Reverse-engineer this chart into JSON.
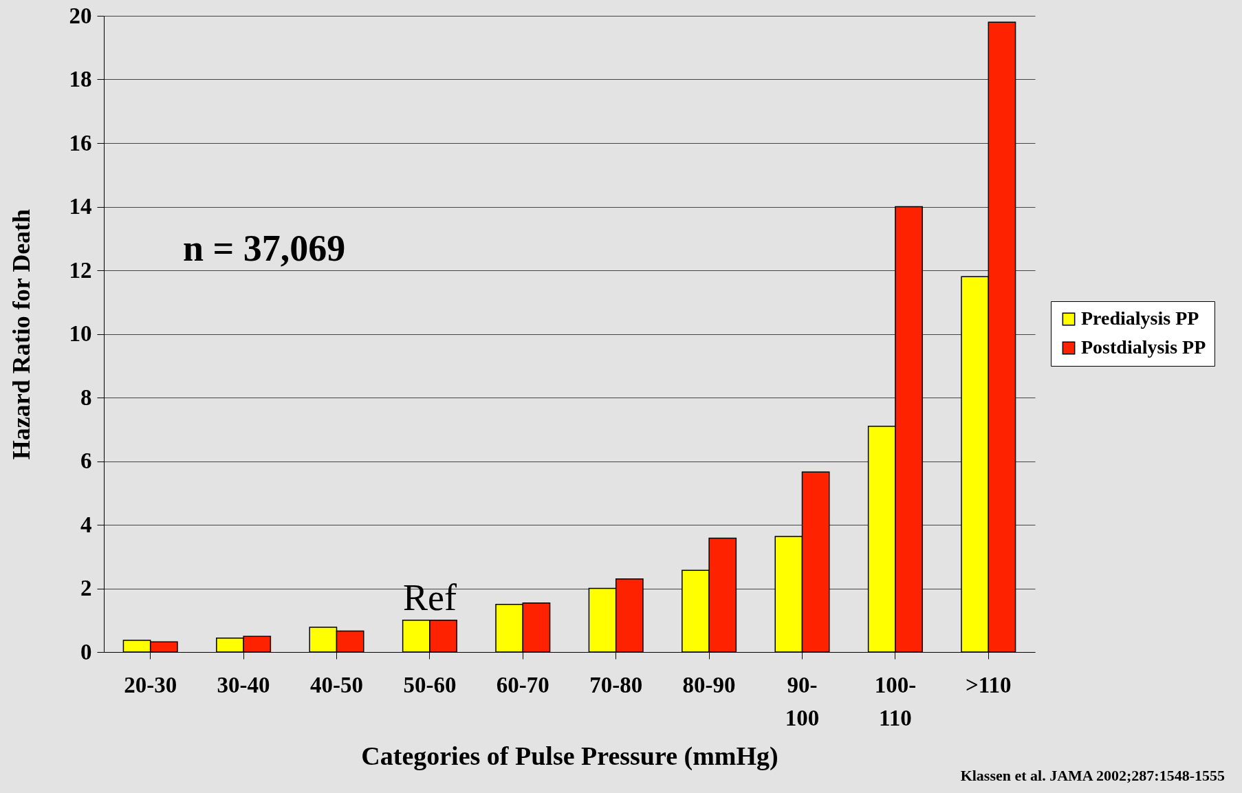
{
  "chart_data": {
    "type": "bar",
    "xlabel": "Categories of Pulse Pressure (mmHg)",
    "ylabel": "Hazard Ratio for Death",
    "categories": [
      "20-30",
      "30-40",
      "40-50",
      "50-60",
      "60-70",
      "70-80",
      "80-90",
      "90-100",
      "100-110",
      ">110"
    ],
    "series": [
      {
        "name": "Predialysis PP",
        "color": "#ffff00",
        "values": [
          0.37,
          0.44,
          0.78,
          1.0,
          1.5,
          2.0,
          2.57,
          3.63,
          7.1,
          11.8
        ]
      },
      {
        "name": "Postdialysis PP",
        "color": "#ff2200",
        "values": [
          0.32,
          0.49,
          0.66,
          1.0,
          1.54,
          2.3,
          3.58,
          5.66,
          14.0,
          19.8
        ]
      }
    ],
    "ylim": [
      0,
      20
    ],
    "yticks": [
      0,
      2,
      4,
      6,
      8,
      10,
      12,
      14,
      16,
      18,
      20
    ],
    "grid": "y",
    "legend": "right",
    "annotations": [
      "n = 37,069",
      {
        "text": "Ref",
        "x": "50-60",
        "y": 1
      },
      "Klassen et al. JAMA 2002;287:1548-1555"
    ]
  }
}
